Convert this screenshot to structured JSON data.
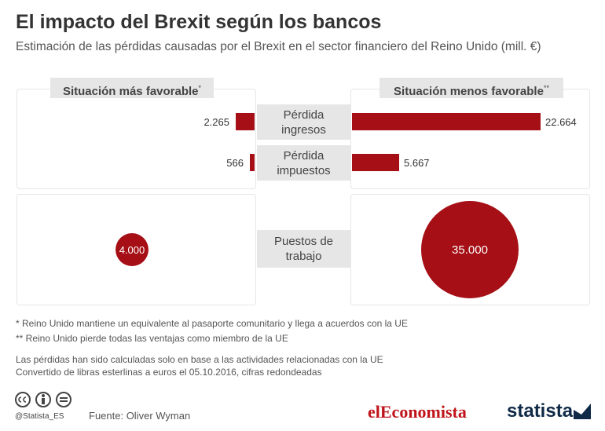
{
  "chart_data": {
    "type": "butterfly",
    "title": "El impacto del Brexit según los bancos",
    "subtitle": "Estimación de las pérdidas causadas por el Brexit en el sector financiero del Reino Unido (mill. €)",
    "categories": [
      "Pérdida ingresos",
      "Pérdida impuestos"
    ],
    "series": [
      {
        "name": "Situación más favorable",
        "note_mark": "*",
        "color": "#a50f15",
        "values": [
          2265,
          566
        ],
        "value_labels": [
          "2.265",
          "566"
        ]
      },
      {
        "name": "Situación menos favorable",
        "note_mark": "**",
        "color": "#a50f15",
        "values": [
          22664,
          5667
        ],
        "value_labels": [
          "22.664",
          "5.667"
        ]
      }
    ],
    "bubbles": {
      "category": "Puestos de trabajo",
      "color": "#a50f15",
      "values": [
        4000,
        35000
      ],
      "value_labels": [
        "4.000",
        "35.000"
      ]
    },
    "notes": [
      "*   Reino Unido mantiene un equivalente al pasaporte comunitario y llega a acuerdos con la UE",
      "** Reino Unido pierde todas las ventajas como miembro de la UE",
      "Las pérdidas han sido calculadas solo en base a las actividades relacionadas con la UE",
      "Convertido de libras esterlinas a euros el 05.10.2016, cifras redondeadas"
    ],
    "handle": "@Statista_ES",
    "source": "Fuente: Oliver Wyman",
    "brand_left": "elEconomista",
    "brand_right": "statista"
  }
}
